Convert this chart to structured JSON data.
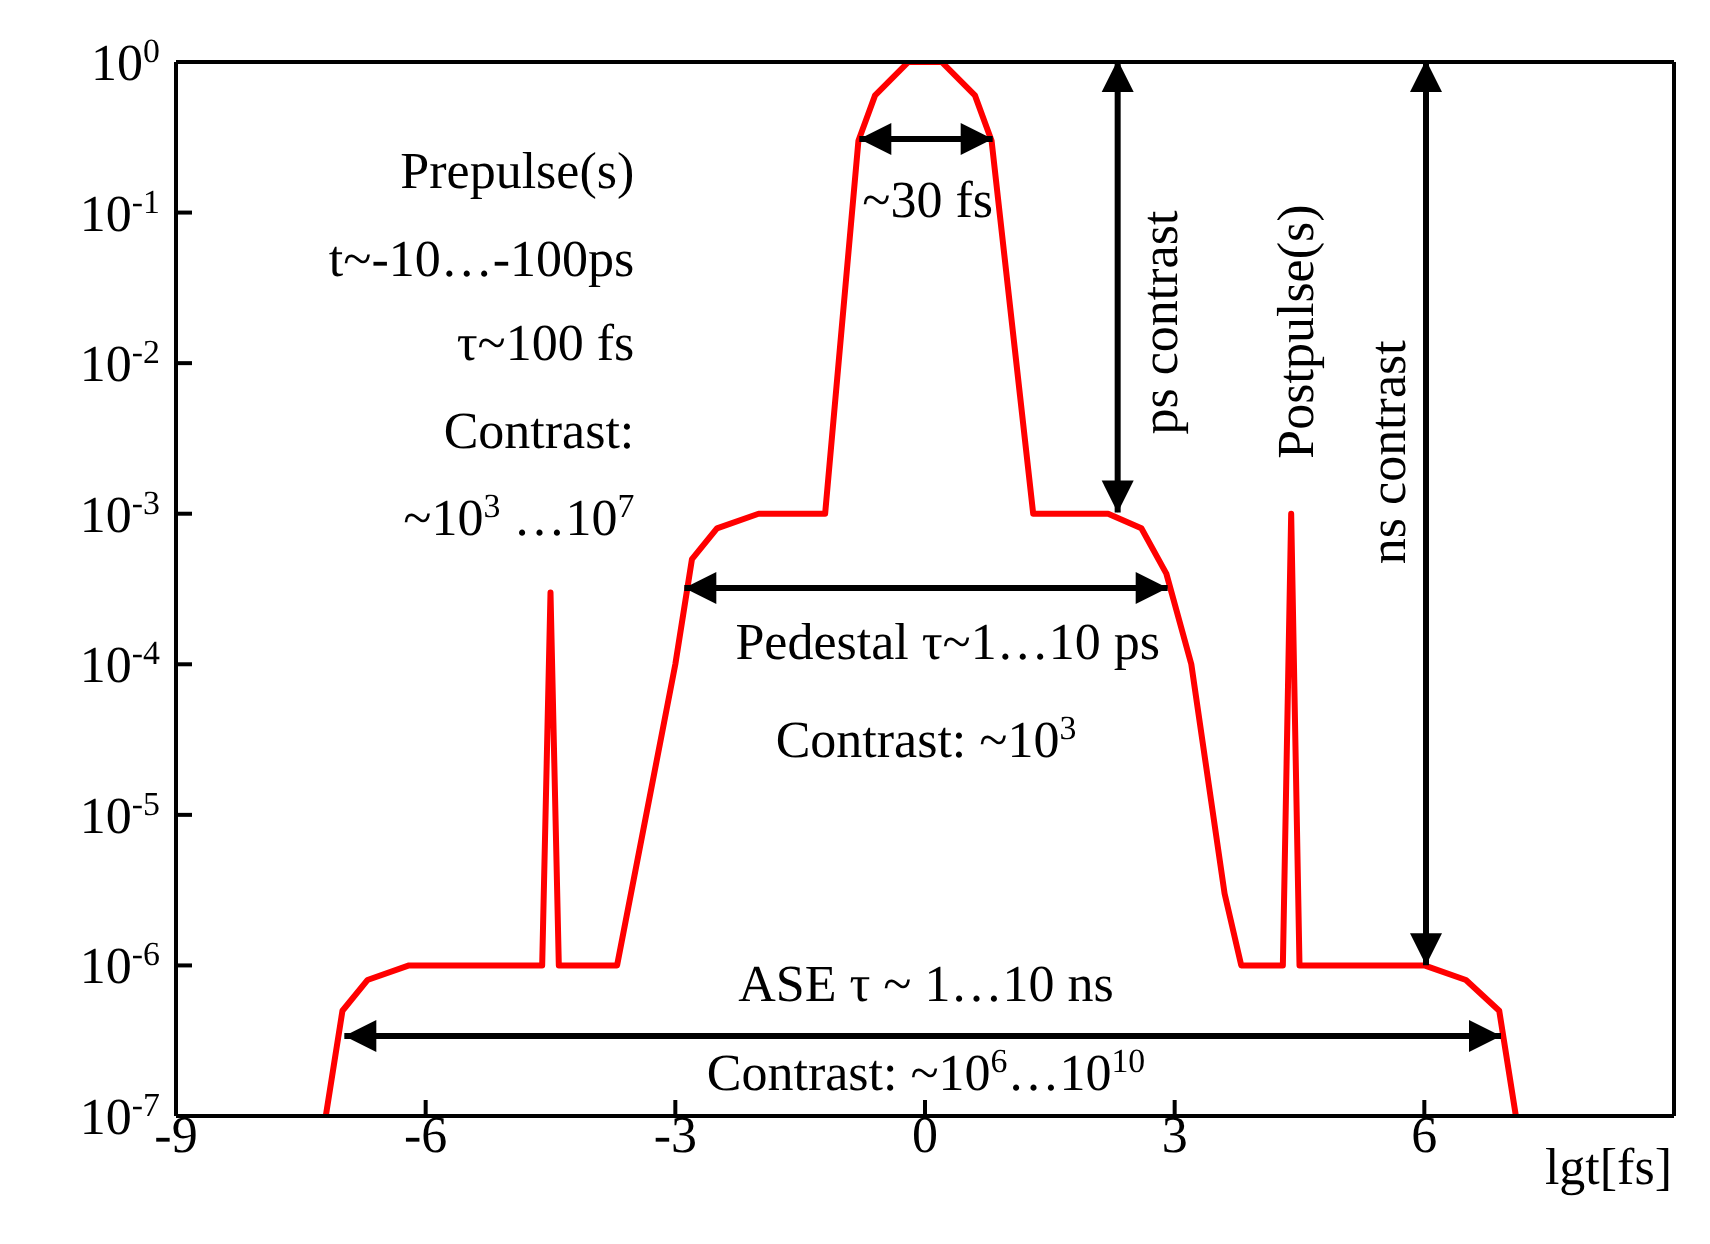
{
  "chart_data": {
    "type": "line",
    "xlabel": "lgt[fs]",
    "log": true,
    "x": [
      -7.2,
      -7.0,
      -6.7,
      -6.2,
      -4.6,
      -4.5,
      -4.4,
      -3.7,
      -3.0,
      -2.8,
      -2.5,
      -2.0,
      -1.2,
      -0.8,
      -0.6,
      -0.2,
      0.2,
      0.6,
      0.8,
      1.3,
      2.2,
      2.6,
      2.9,
      3.2,
      3.6,
      3.8,
      4.3,
      4.4,
      4.5,
      6.0,
      6.5,
      6.9,
      7.1
    ],
    "values": [
      1e-07,
      5e-07,
      8e-07,
      1e-06,
      1e-06,
      0.0003,
      1e-06,
      1e-06,
      0.0001,
      0.0005,
      0.0008,
      0.001,
      0.001,
      0.3,
      0.6,
      1,
      1,
      0.6,
      0.3,
      0.001,
      0.001,
      0.0008,
      0.0004,
      0.0001,
      3e-06,
      1e-06,
      1e-06,
      0.001,
      1e-06,
      1e-06,
      8e-07,
      5e-07,
      1e-07
    ],
    "color": "#ff0000",
    "xlim": [
      -9,
      9
    ],
    "xticks": [
      -9,
      -6,
      -3,
      0,
      3,
      6
    ],
    "ylim": [
      1e-07,
      1
    ],
    "yticks": [
      {
        "value": 1e-07,
        "label": "10$^{-7}$"
      },
      {
        "value": 1e-06,
        "label": "10$^{-6}$"
      },
      {
        "value": 1e-05,
        "label": "10$^{-5}$"
      },
      {
        "value": 0.0001,
        "label": "10$^{-4}$"
      },
      {
        "value": 0.001,
        "label": "10$^{-3}$"
      },
      {
        "value": 0.01,
        "label": "10$^{-2}$"
      },
      {
        "value": 0.1,
        "label": "10$^{-1}$"
      },
      {
        "value": 1,
        "label": "10$^{0}$"
      }
    ],
    "annotations": [
      "Prepulse(s)",
      "t~-10…-100ps",
      "τ~100 fs",
      "Contrast:",
      "~10$^{3}$ …10$^{7}$",
      "~30 fs",
      {
        "text": "ps contrast",
        "x": 2.2,
        "y": 0.001
      },
      "Postpulse(s)",
      "ns contrast",
      "Pedestal τ~1…10 ps",
      "Contrast: ~10$^{3}$",
      "ASE τ ~ 1…10 ns",
      "Contrast: ~10$^{6}$…10$^{10}$"
    ]
  }
}
